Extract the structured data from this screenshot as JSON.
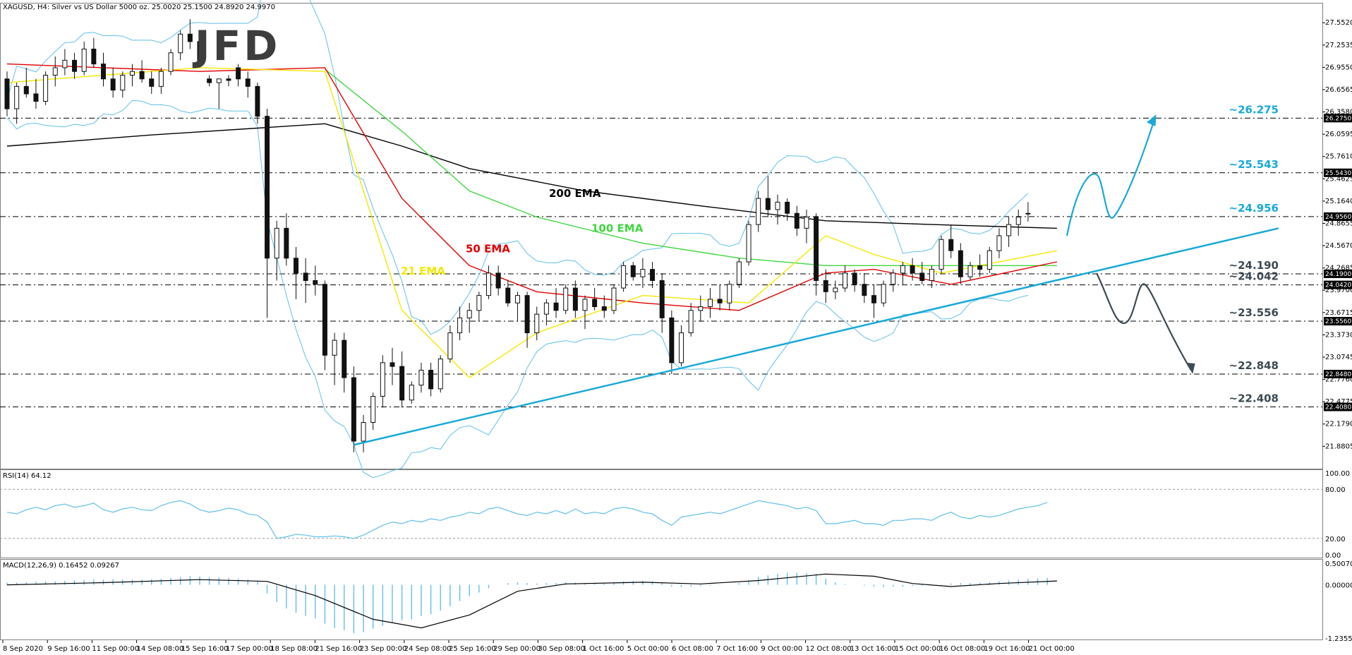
{
  "header": {
    "main": "XAGUSD, H4:  Silver vs US Dollar 5000 oz.  25.0020 25.1500 24.8920 24.9970",
    "rsi": "RSI(14) 64.12",
    "macd": "MACD(12,26,9) 0.16452 0.09267"
  },
  "logo": "JFD",
  "colors": {
    "ema21": "#f4e800",
    "ema50": "#e00000",
    "ema100": "#3fd63f",
    "ema200": "#000000",
    "bands": "#62bfea",
    "candle": "#111111",
    "trendline": "#18a9d8",
    "arrow_up": "#18a9d8",
    "arrow_down": "#3c4a52",
    "level_label_up": "#18a9d8",
    "level_label_down": "#3c4a52",
    "badge_bg": "#000000"
  },
  "chart_data": [
    {
      "type": "candlestick",
      "title": "XAGUSD, H4",
      "ylim": [
        21.6,
        27.8
      ],
      "price_ticks": [
        "27.5520",
        "27.2535",
        "26.9550",
        "26.6565",
        "26.3580",
        "26.0595",
        "25.7610",
        "25.4625",
        "25.1640",
        "24.8655",
        "24.5670",
        "24.2685",
        "23.9700",
        "23.6715",
        "23.3730",
        "23.0745",
        "22.7760",
        "22.4775",
        "22.1790",
        "21.8805"
      ],
      "x_ticks": [
        "8 Sep 2020",
        "9 Sep 16:00",
        "11 Sep 00:00",
        "14 Sep 08:00",
        "15 Sep 16:00",
        "17 Sep 00:00",
        "18 Sep 08:00",
        "21 Sep 16:00",
        "23 Sep 00:00",
        "24 Sep 08:00",
        "25 Sep 16:00",
        "29 Sep 00:00",
        "30 Sep 08:00",
        "1 Oct 16:00",
        "5 Oct 00:00",
        "6 Oct 08:00",
        "7 Oct 16:00",
        "9 Oct 00:00",
        "12 Oct 08:00",
        "13 Oct 16:00",
        "15 Oct 00:00",
        "16 Oct 08:00",
        "19 Oct 16:00",
        "21 Oct 00:00"
      ],
      "levels": [
        {
          "value": 26.275,
          "label": "~26.275",
          "badge": "26.2750",
          "side": "up"
        },
        {
          "value": 25.543,
          "label": "~25.543",
          "badge": "25.5430",
          "side": "up"
        },
        {
          "value": 24.956,
          "label": "~24.956",
          "badge": "24.9560",
          "side": "up"
        },
        {
          "value": 24.19,
          "label": "~24.190",
          "badge": "24.1900",
          "side": "down"
        },
        {
          "value": 24.042,
          "label": "~24.042",
          "badge": "24.0420",
          "side": "down"
        },
        {
          "value": 23.556,
          "label": "~23.556",
          "badge": "23.5560",
          "side": "down"
        },
        {
          "value": 22.848,
          "label": "~22.848",
          "badge": "22.8480",
          "side": "down"
        },
        {
          "value": 22.408,
          "label": "~22.408",
          "badge": "22.4080",
          "side": "down"
        }
      ],
      "ema_labels": [
        {
          "text": "200 EMA",
          "color": "#000000"
        },
        {
          "text": "100 EMA",
          "color": "#3fd63f"
        },
        {
          "text": "50 EMA",
          "color": "#e00000"
        },
        {
          "text": "21 EMA",
          "color": "#f4e800"
        }
      ],
      "candles": [
        [
          26.8,
          26.9,
          26.3,
          26.4
        ],
        [
          26.4,
          26.75,
          26.2,
          26.7
        ],
        [
          26.7,
          26.95,
          26.55,
          26.6
        ],
        [
          26.6,
          26.8,
          26.4,
          26.5
        ],
        [
          26.5,
          26.9,
          26.45,
          26.85
        ],
        [
          26.85,
          27.1,
          26.7,
          26.95
        ],
        [
          26.95,
          27.2,
          26.85,
          27.05
        ],
        [
          27.05,
          27.15,
          26.8,
          26.9
        ],
        [
          26.9,
          27.3,
          26.85,
          27.2
        ],
        [
          27.2,
          27.35,
          26.95,
          27.0
        ],
        [
          27.0,
          27.15,
          26.7,
          26.8
        ],
        [
          26.8,
          26.95,
          26.55,
          26.65
        ],
        [
          26.65,
          26.9,
          26.55,
          26.85
        ],
        [
          26.85,
          27.0,
          26.7,
          26.9
        ],
        [
          26.9,
          27.05,
          26.75,
          26.8
        ],
        [
          26.8,
          26.9,
          26.6,
          26.7
        ],
        [
          26.7,
          26.95,
          26.6,
          26.9
        ],
        [
          26.9,
          27.2,
          26.85,
          27.15
        ],
        [
          27.15,
          27.45,
          27.05,
          27.4
        ],
        [
          27.4,
          27.6,
          27.2,
          27.3
        ],
        [
          27.3,
          27.35,
          26.95,
          27.0
        ],
        [
          26.8,
          26.85,
          26.7,
          26.75
        ],
        [
          26.75,
          26.8,
          26.4,
          26.8
        ],
        [
          26.8,
          26.85,
          26.7,
          26.78
        ],
        [
          26.95,
          27.0,
          26.7,
          26.8
        ],
        [
          26.8,
          26.9,
          26.55,
          26.7
        ],
        [
          26.7,
          26.75,
          26.2,
          26.3
        ],
        [
          26.3,
          26.4,
          23.6,
          24.4
        ],
        [
          24.4,
          24.9,
          24.1,
          24.8
        ],
        [
          24.8,
          25.0,
          24.3,
          24.4
        ],
        [
          24.4,
          24.55,
          23.85,
          24.2
        ],
        [
          24.2,
          24.4,
          23.8,
          24.1
        ],
        [
          24.1,
          24.3,
          23.9,
          24.05
        ],
        [
          24.05,
          24.1,
          22.9,
          23.1
        ],
        [
          23.1,
          23.4,
          22.7,
          23.3
        ],
        [
          23.3,
          23.4,
          22.6,
          22.8
        ],
        [
          22.8,
          22.95,
          21.8,
          21.95
        ],
        [
          21.95,
          22.3,
          21.8,
          22.2
        ],
        [
          22.2,
          22.6,
          22.1,
          22.55
        ],
        [
          22.55,
          23.1,
          22.4,
          23.0
        ],
        [
          23.0,
          23.2,
          22.7,
          22.95
        ],
        [
          22.95,
          23.15,
          22.4,
          22.5
        ],
        [
          22.5,
          22.75,
          22.45,
          22.7
        ],
        [
          22.7,
          23.0,
          22.6,
          22.9
        ],
        [
          22.9,
          23.0,
          22.55,
          22.65
        ],
        [
          22.65,
          23.1,
          22.6,
          23.05
        ],
        [
          23.05,
          23.5,
          23.0,
          23.4
        ],
        [
          23.4,
          23.75,
          23.3,
          23.6
        ],
        [
          23.6,
          23.8,
          23.4,
          23.7
        ],
        [
          23.7,
          23.95,
          23.55,
          23.9
        ],
        [
          23.9,
          24.3,
          23.85,
          24.2
        ],
        [
          24.2,
          24.3,
          23.9,
          24.0
        ],
        [
          24.0,
          24.1,
          23.75,
          23.8
        ],
        [
          23.8,
          23.95,
          23.55,
          23.9
        ],
        [
          23.9,
          23.95,
          23.2,
          23.4
        ],
        [
          23.4,
          23.75,
          23.3,
          23.65
        ],
        [
          23.65,
          23.85,
          23.5,
          23.8
        ],
        [
          23.8,
          24.0,
          23.6,
          23.7
        ],
        [
          23.7,
          24.05,
          23.65,
          24.0
        ],
        [
          24.0,
          24.1,
          23.6,
          23.7
        ],
        [
          23.7,
          23.9,
          23.45,
          23.85
        ],
        [
          23.85,
          24.0,
          23.7,
          23.75
        ],
        [
          23.75,
          23.9,
          23.6,
          23.7
        ],
        [
          23.7,
          24.05,
          23.65,
          24.0
        ],
        [
          24.0,
          24.35,
          23.95,
          24.3
        ],
        [
          24.3,
          24.35,
          24.1,
          24.15
        ],
        [
          24.15,
          24.4,
          24.0,
          24.25
        ],
        [
          24.25,
          24.35,
          24.0,
          24.1
        ],
        [
          24.1,
          24.2,
          23.4,
          23.6
        ],
        [
          23.6,
          23.7,
          22.85,
          23.0
        ],
        [
          23.0,
          23.5,
          22.95,
          23.4
        ],
        [
          23.4,
          23.8,
          23.35,
          23.7
        ],
        [
          23.7,
          23.9,
          23.55,
          23.75
        ],
        [
          23.75,
          24.0,
          23.6,
          23.85
        ],
        [
          23.85,
          24.05,
          23.7,
          23.8
        ],
        [
          23.8,
          24.1,
          23.7,
          24.05
        ],
        [
          24.05,
          24.4,
          24.0,
          24.35
        ],
        [
          24.35,
          24.9,
          24.3,
          24.85
        ],
        [
          24.85,
          25.3,
          24.75,
          25.2
        ],
        [
          25.2,
          25.5,
          24.95,
          25.05
        ],
        [
          25.05,
          25.25,
          24.85,
          25.15
        ],
        [
          25.15,
          25.2,
          24.9,
          25.0
        ],
        [
          25.0,
          25.1,
          24.7,
          24.8
        ],
        [
          24.8,
          25.05,
          24.6,
          24.95
        ],
        [
          24.95,
          25.0,
          23.9,
          24.1
        ],
        [
          24.1,
          24.25,
          23.8,
          23.95
        ],
        [
          23.95,
          24.1,
          23.85,
          24.0
        ],
        [
          24.0,
          24.3,
          23.95,
          24.2
        ],
        [
          24.2,
          24.25,
          23.95,
          24.05
        ],
        [
          24.05,
          24.2,
          23.8,
          23.9
        ],
        [
          23.9,
          24.05,
          23.6,
          23.8
        ],
        [
          23.8,
          24.1,
          23.75,
          24.05
        ],
        [
          24.05,
          24.25,
          23.95,
          24.2
        ],
        [
          24.2,
          24.35,
          24.05,
          24.3
        ],
        [
          24.3,
          24.4,
          24.1,
          24.2
        ],
        [
          24.2,
          24.35,
          24.05,
          24.1
        ],
        [
          24.1,
          24.3,
          24.0,
          24.25
        ],
        [
          24.25,
          24.7,
          24.2,
          24.65
        ],
        [
          24.65,
          24.85,
          24.4,
          24.5
        ],
        [
          24.5,
          24.6,
          24.05,
          24.15
        ],
        [
          24.15,
          24.35,
          24.1,
          24.3
        ],
        [
          24.3,
          24.45,
          24.15,
          24.25
        ],
        [
          24.25,
          24.55,
          24.2,
          24.5
        ],
        [
          24.5,
          24.8,
          24.4,
          24.7
        ],
        [
          24.7,
          24.95,
          24.55,
          24.85
        ],
        [
          24.85,
          25.05,
          24.7,
          24.95
        ],
        [
          25.0,
          25.15,
          24.89,
          25.0
        ]
      ],
      "ema21": [
        [
          0,
          26.75
        ],
        [
          20,
          26.95
        ],
        [
          33,
          26.9
        ],
        [
          41,
          23.7
        ],
        [
          48,
          22.8
        ],
        [
          55,
          23.4
        ],
        [
          66,
          23.9
        ],
        [
          77,
          23.8
        ],
        [
          85,
          24.7
        ],
        [
          90,
          24.45
        ],
        [
          97,
          24.2
        ],
        [
          109,
          24.5
        ]
      ],
      "ema50": [
        [
          0,
          27.0
        ],
        [
          20,
          26.9
        ],
        [
          33,
          26.95
        ],
        [
          41,
          25.2
        ],
        [
          48,
          24.3
        ],
        [
          55,
          23.95
        ],
        [
          66,
          23.8
        ],
        [
          76,
          23.7
        ],
        [
          85,
          24.2
        ],
        [
          90,
          24.25
        ],
        [
          98,
          24.05
        ],
        [
          109,
          24.35
        ]
      ],
      "ema100": [
        [
          33,
          26.93
        ],
        [
          41,
          26.1
        ],
        [
          48,
          25.3
        ],
        [
          55,
          24.95
        ],
        [
          66,
          24.6
        ],
        [
          76,
          24.4
        ],
        [
          85,
          24.3
        ],
        [
          94,
          24.3
        ],
        [
          109,
          24.3
        ]
      ],
      "ema200": [
        [
          0,
          25.9
        ],
        [
          15,
          26.05
        ],
        [
          33,
          26.2
        ],
        [
          41,
          25.9
        ],
        [
          48,
          25.6
        ],
        [
          60,
          25.3
        ],
        [
          72,
          25.1
        ],
        [
          85,
          24.9
        ],
        [
          96,
          24.85
        ],
        [
          109,
          24.8
        ]
      ],
      "trendline": [
        [
          21.9,
          36
        ],
        [
          24.8,
          132
        ]
      ],
      "scenario_up": [
        [
          24.7,
          24.95
        ],
        [
          25.55,
          25.55
        ],
        [
          24.95,
          24.95
        ],
        [
          26.25,
          26.25
        ]
      ],
      "scenario_down": [
        [
          24.2,
          24.2
        ],
        [
          23.55,
          23.55
        ],
        [
          24.05,
          24.05
        ],
        [
          22.85,
          22.85
        ]
      ]
    },
    {
      "type": "line",
      "title": "RSI(14) 64.12",
      "ylim": [
        0,
        100
      ],
      "ticks": [
        "100.00",
        "80.00",
        "20.00",
        "0.00"
      ],
      "values": [
        52,
        50,
        55,
        58,
        55,
        60,
        62,
        58,
        60,
        63,
        55,
        52,
        56,
        58,
        55,
        54,
        60,
        64,
        66,
        62,
        55,
        52,
        54,
        57,
        55,
        50,
        48,
        40,
        20,
        22,
        25,
        24,
        22,
        22,
        23,
        22,
        20,
        24,
        30,
        36,
        40,
        38,
        42,
        40,
        44,
        42,
        46,
        48,
        52,
        50,
        56,
        58,
        54,
        50,
        48,
        52,
        50,
        54,
        50,
        56,
        50,
        52,
        50,
        56,
        58,
        56,
        52,
        50,
        42,
        36,
        46,
        48,
        50,
        52,
        50,
        54,
        58,
        62,
        66,
        64,
        62,
        60,
        56,
        58,
        54,
        38,
        38,
        40,
        42,
        38,
        38,
        36,
        42,
        42,
        44,
        44,
        42,
        48,
        52,
        46,
        44,
        48,
        46,
        48,
        52,
        56,
        58,
        60,
        64
      ],
      "levels": [
        80,
        20
      ]
    },
    {
      "type": "bar",
      "title": "MACD(12,26,9) 0.16452 0.09267",
      "ylim": [
        -1.2355,
        0.5007
      ],
      "ticks": [
        "0.50070",
        "0.00000",
        "-1.23550"
      ],
      "histogram": [
        0.05,
        0.05,
        0.06,
        0.07,
        0.08,
        0.08,
        0.09,
        0.1,
        0.11,
        0.12,
        0.12,
        0.13,
        0.12,
        0.12,
        0.12,
        0.13,
        0.14,
        0.16,
        0.18,
        0.2,
        0.19,
        0.18,
        0.17,
        0.16,
        0.15,
        0.12,
        0.08,
        -0.2,
        -0.4,
        -0.55,
        -0.65,
        -0.72,
        -0.78,
        -0.9,
        -1.0,
        -1.05,
        -1.12,
        -1.1,
        -1.02,
        -0.95,
        -0.88,
        -0.82,
        -0.8,
        -0.72,
        -0.68,
        -0.6,
        -0.5,
        -0.38,
        -0.26,
        -0.18,
        -0.08,
        0.0,
        0.04,
        0.06,
        0.04,
        0.03,
        0.04,
        0.04,
        0.06,
        0.05,
        0.04,
        0.04,
        0.05,
        0.06,
        0.08,
        0.09,
        0.09,
        0.08,
        0.04,
        -0.04,
        -0.05,
        -0.04,
        -0.03,
        -0.02,
        -0.01,
        0.0,
        0.04,
        0.1,
        0.18,
        0.22,
        0.26,
        0.28,
        0.28,
        0.27,
        0.26,
        0.14,
        0.06,
        0.02,
        0.0,
        -0.02,
        -0.04,
        -0.05,
        -0.04,
        -0.04,
        -0.03,
        -0.02,
        -0.02,
        -0.01,
        0.03,
        0.04,
        0.04,
        0.05,
        0.06,
        0.08,
        0.1,
        0.12,
        0.14,
        0.15,
        0.16
      ],
      "signal": [
        [
          0,
          0.0
        ],
        [
          10,
          0.05
        ],
        [
          20,
          0.12
        ],
        [
          27,
          0.08
        ],
        [
          32,
          -0.25
        ],
        [
          38,
          -0.8
        ],
        [
          43,
          -1.0
        ],
        [
          48,
          -0.7
        ],
        [
          53,
          -0.15
        ],
        [
          58,
          0.02
        ],
        [
          66,
          0.06
        ],
        [
          72,
          0.02
        ],
        [
          78,
          0.1
        ],
        [
          85,
          0.25
        ],
        [
          90,
          0.2
        ],
        [
          94,
          0.03
        ],
        [
          98,
          -0.04
        ],
        [
          103,
          0.03
        ],
        [
          109,
          0.09
        ]
      ]
    }
  ]
}
